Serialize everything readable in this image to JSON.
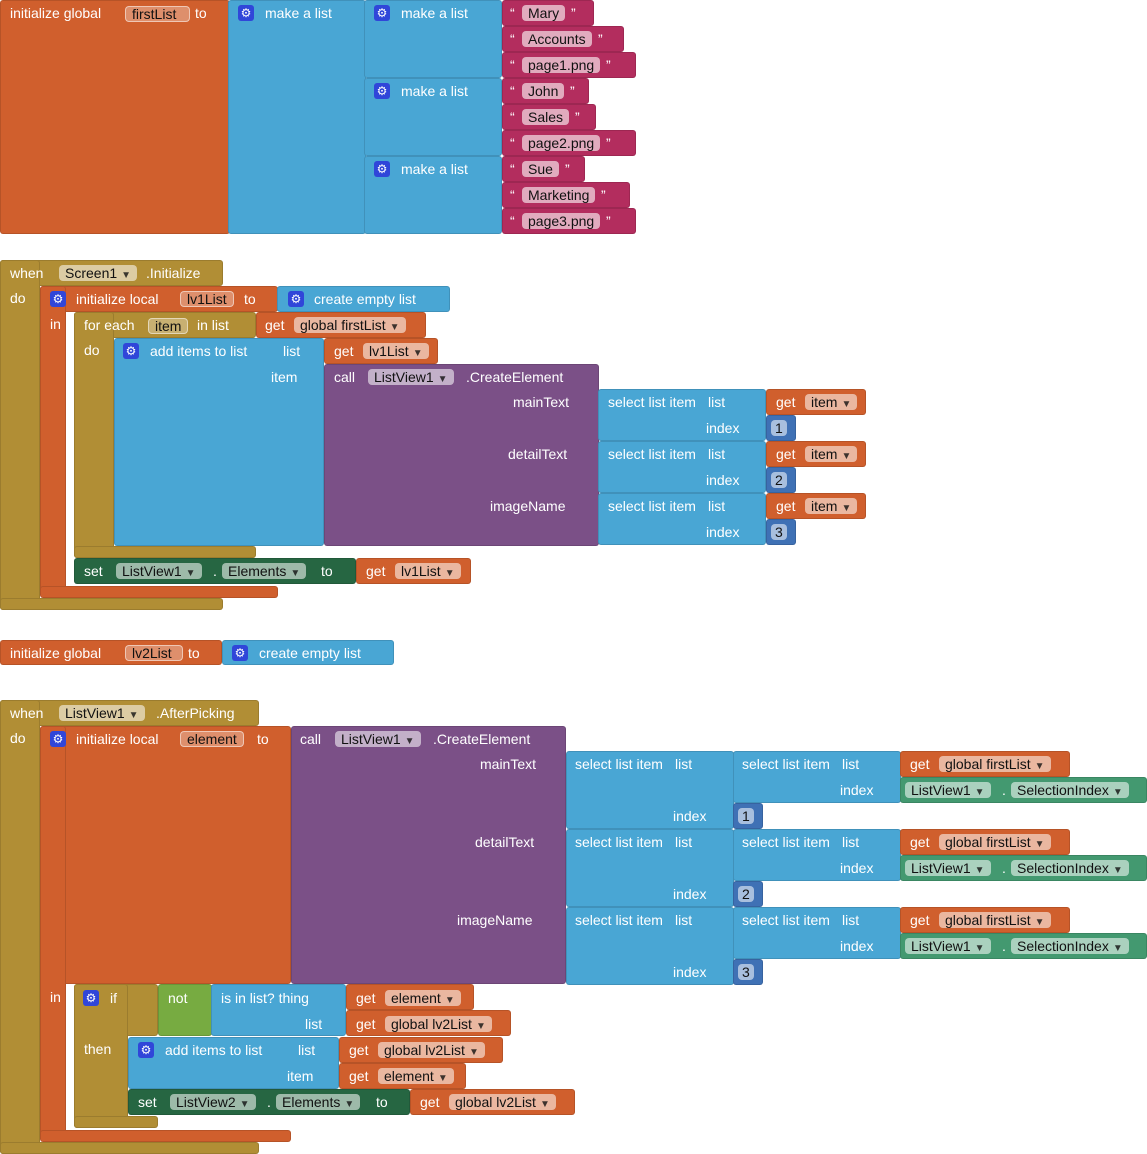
{
  "colors": {
    "procedure_orange": "#D05F2D",
    "list_blue": "#49A6D4",
    "text_pink": "#B32D5E",
    "control_olive": "#B18E35",
    "component_purple": "#7B5087",
    "setter_green": "#266642",
    "getter_green": "#439970",
    "logic_green": "#77AB41",
    "math_blue": "#3F71B5"
  },
  "icons": {
    "mutator": "gear-icon",
    "dropdown": "triangle-down"
  },
  "global_firstList": {
    "init_label": "initialize global",
    "var": "firstList",
    "to": "to",
    "make_list": "make a list",
    "open_quote": "“",
    "close_quote": "”",
    "rows": [
      [
        "Mary",
        "Accounts",
        "page1.png"
      ],
      [
        "John",
        "Sales",
        "page2.png"
      ],
      [
        "Sue",
        "Marketing",
        "page3.png"
      ]
    ]
  },
  "screen_init": {
    "when": "when",
    "component": "Screen1",
    "event": ".Initialize",
    "do": "do",
    "init_local": "initialize local",
    "var": "lv1List",
    "to": "to",
    "create_empty": "create empty list",
    "in": "in",
    "for_each": "for each",
    "item_var": "item",
    "in_list": "in list",
    "get": "get",
    "global_firstList": "global firstList",
    "do2": "do",
    "add_items": "add items to list",
    "list": "list",
    "item": "item",
    "lv1List": "lv1List",
    "call": "call",
    "listview": "ListView1",
    "create": ".CreateElement",
    "mainText": "mainText",
    "detailText": "detailText",
    "imageName": "imageName",
    "select": "select list item",
    "index": "index",
    "indices": [
      "1",
      "2",
      "3"
    ],
    "set": "set",
    "dot": ".",
    "elements": "Elements"
  },
  "global_lv2List": {
    "init_label": "initialize global",
    "var": "lv2List",
    "to": "to",
    "create_empty": "create empty list"
  },
  "after_picking": {
    "when": "when",
    "component": "ListView1",
    "event": ".AfterPicking",
    "do": "do",
    "init_local": "initialize local",
    "var": "element",
    "to": "to",
    "call": "call",
    "listview": "ListView1",
    "create": ".CreateElement",
    "mainText": "mainText",
    "detailText": "detailText",
    "imageName": "imageName",
    "select": "select list item",
    "list": "list",
    "index": "index",
    "indices": [
      "1",
      "2",
      "3"
    ],
    "get": "get",
    "global_firstList": "global firstList",
    "dot": ".",
    "selection_index": "SelectionIndex",
    "in": "in",
    "if": "if",
    "not": "not",
    "is_in_list": "is in list? thing",
    "element": "element",
    "global_lv2List": "global lv2List",
    "then": "then",
    "add_items": "add items to list",
    "item": "item",
    "set": "set",
    "listview2": "ListView2",
    "elements": "Elements",
    "to2": "to"
  }
}
